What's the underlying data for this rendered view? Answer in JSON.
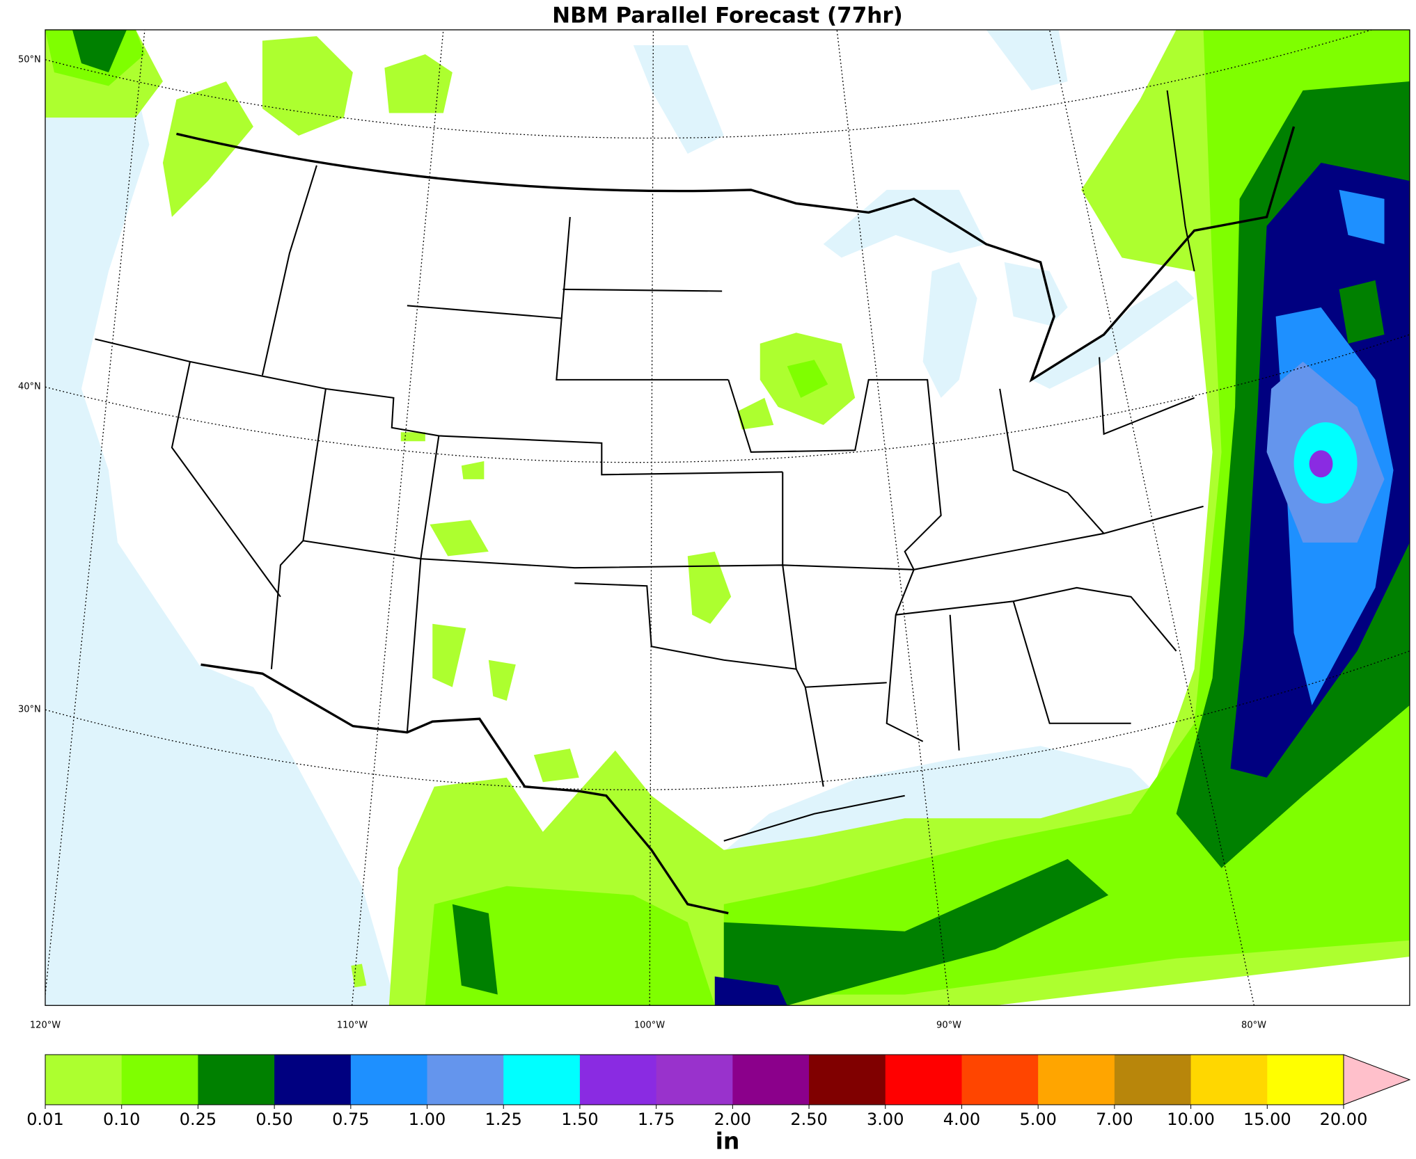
{
  "title": "NBM Parallel Forecast (77hr)",
  "map": {
    "lat_labels": [
      "50°N",
      "40°N",
      "30°N"
    ],
    "lon_labels": [
      "120°W",
      "110°W",
      "100°W",
      "90°W",
      "80°W"
    ]
  },
  "colorbar": {
    "unit": "in",
    "levels": [
      {
        "value": 0.01,
        "label": "0.01"
      },
      {
        "value": 0.1,
        "label": "0.10"
      },
      {
        "value": 0.25,
        "label": "0.25"
      },
      {
        "value": 0.5,
        "label": "0.50"
      },
      {
        "value": 0.75,
        "label": "0.75"
      },
      {
        "value": 1,
        "label": "1.00"
      },
      {
        "value": 1.25,
        "label": "1.25"
      },
      {
        "value": 1.5,
        "label": "1.50"
      },
      {
        "value": 1.75,
        "label": "1.75"
      },
      {
        "value": 2,
        "label": "2.00"
      },
      {
        "value": 2.5,
        "label": "2.50"
      },
      {
        "value": 3,
        "label": "3.00"
      },
      {
        "value": 4,
        "label": "4.00"
      },
      {
        "value": 5,
        "label": "5.00"
      },
      {
        "value": 7,
        "label": "7.00"
      },
      {
        "value": 10,
        "label": "10.00"
      },
      {
        "value": 15,
        "label": "15.00"
      },
      {
        "value": 20,
        "label": "20.00"
      }
    ],
    "colors": [
      "#adff2f",
      "#7fff00",
      "#008000",
      "#000080",
      "#1e90ff",
      "#6495ed",
      "#00ffff",
      "#8a2be2",
      "#9932cc",
      "#8b008b",
      "#800000",
      "#ff0000",
      "#ff4500",
      "#ffa500",
      "#b8860b",
      "#ffd700",
      "#ffff00"
    ],
    "extend_color": "#ffc0cb"
  }
}
